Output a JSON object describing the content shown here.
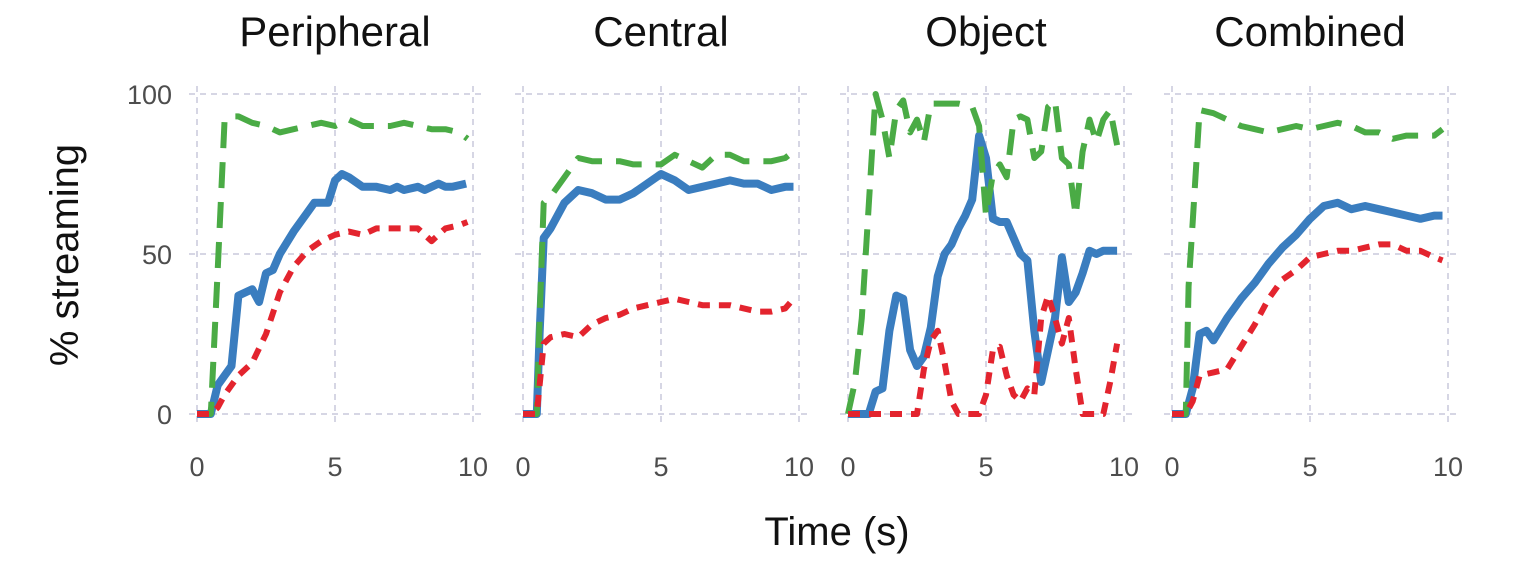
{
  "chart_data": [
    {
      "type": "line",
      "title": "Peripheral",
      "xlim": [
        0,
        10
      ],
      "ylim": [
        0,
        100
      ],
      "xticks": [
        "0",
        "5",
        "10"
      ],
      "yticks": [
        "0",
        "50",
        "100"
      ],
      "series": [
        {
          "style": "solid",
          "color": "#3a7dbf",
          "x": [
            0,
            0.5,
            0.75,
            1.0,
            1.25,
            1.5,
            2.0,
            2.25,
            2.5,
            2.75,
            3.0,
            3.5,
            4.0,
            4.25,
            4.75,
            5.0,
            5.25,
            5.5,
            6.0,
            6.5,
            7.0,
            7.25,
            7.5,
            8.0,
            8.25,
            8.75,
            9.0,
            9.25,
            9.75
          ],
          "y": [
            0,
            0,
            9,
            12,
            15,
            37,
            39,
            35,
            44,
            45,
            50,
            57,
            63,
            66,
            66,
            73,
            75,
            74,
            71,
            71,
            70,
            71,
            70,
            71,
            70,
            72,
            71,
            71,
            72
          ]
        },
        {
          "style": "dashed",
          "color": "#4aab45",
          "x": [
            0,
            0.5,
            0.75,
            1.0,
            1.25,
            1.5,
            2.0,
            2.5,
            3.0,
            3.5,
            4.0,
            4.5,
            5.0,
            5.5,
            6.0,
            6.5,
            7.0,
            7.5,
            8.0,
            8.5,
            9.0,
            9.5,
            9.8
          ],
          "y": [
            0,
            0,
            45,
            92,
            93,
            93,
            91,
            90,
            88,
            89,
            90,
            91,
            90,
            92,
            90,
            90,
            90,
            91,
            90,
            89,
            89,
            88,
            86
          ]
        },
        {
          "style": "dotted",
          "color": "#e3242e",
          "x": [
            0,
            0.5,
            0.75,
            1.0,
            1.5,
            2.0,
            2.5,
            3.0,
            3.5,
            4.0,
            4.5,
            5.0,
            5.5,
            6.0,
            6.5,
            7.0,
            7.5,
            8.0,
            8.5,
            9.0,
            9.5,
            9.8
          ],
          "y": [
            0,
            0,
            2,
            6,
            12,
            16,
            25,
            38,
            46,
            51,
            54,
            56,
            57,
            56,
            58,
            58,
            58,
            58,
            54,
            58,
            59,
            60
          ]
        }
      ]
    },
    {
      "type": "line",
      "title": "Central",
      "xlim": [
        0,
        10
      ],
      "ylim": [
        0,
        100
      ],
      "xticks": [
        "0",
        "5",
        "10"
      ],
      "yticks": [
        "0",
        "50",
        "100"
      ],
      "series": [
        {
          "style": "solid",
          "color": "#3a7dbf",
          "x": [
            0,
            0.5,
            0.6,
            0.75,
            1.0,
            1.5,
            2.0,
            2.5,
            3.0,
            3.5,
            4.0,
            4.5,
            5.0,
            5.5,
            6.0,
            6.5,
            7.0,
            7.5,
            8.0,
            8.5,
            9.0,
            9.5,
            9.8
          ],
          "y": [
            0,
            0,
            25,
            55,
            58,
            66,
            70,
            69,
            67,
            67,
            69,
            72,
            75,
            73,
            70,
            71,
            72,
            73,
            72,
            72,
            70,
            71,
            71
          ]
        },
        {
          "style": "dashed",
          "color": "#4aab45",
          "x": [
            0,
            0.5,
            0.6,
            0.75,
            1.0,
            1.5,
            2.0,
            2.5,
            3.0,
            3.5,
            4.0,
            4.5,
            5.0,
            5.5,
            6.0,
            6.5,
            7.0,
            7.5,
            8.0,
            8.5,
            9.0,
            9.5,
            9.8
          ],
          "y": [
            0,
            0,
            30,
            66,
            68,
            74,
            80,
            79,
            79,
            79,
            78,
            78,
            78,
            81,
            79,
            77,
            81,
            81,
            79,
            79,
            79,
            80,
            82
          ]
        },
        {
          "style": "dotted",
          "color": "#e3242e",
          "x": [
            0,
            0.5,
            0.75,
            1.0,
            1.5,
            2.0,
            2.5,
            3.0,
            3.5,
            4.0,
            4.5,
            5.0,
            5.5,
            6.0,
            6.5,
            7.0,
            7.5,
            8.0,
            8.5,
            9.0,
            9.5,
            9.8
          ],
          "y": [
            0,
            0,
            22,
            24,
            25,
            24,
            28,
            30,
            31,
            33,
            34,
            35,
            36,
            35,
            34,
            34,
            34,
            33,
            32,
            32,
            33,
            36
          ]
        }
      ]
    },
    {
      "type": "line",
      "title": "Object",
      "xlim": [
        0,
        10
      ],
      "ylim": [
        0,
        100
      ],
      "xticks": [
        "0",
        "5",
        "10"
      ],
      "yticks": [
        "0",
        "50",
        "100"
      ],
      "series": [
        {
          "style": "solid",
          "color": "#3a7dbf",
          "x": [
            0,
            0.25,
            0.5,
            0.75,
            1.0,
            1.25,
            1.5,
            1.75,
            2.0,
            2.25,
            2.5,
            2.75,
            3.0,
            3.25,
            3.5,
            3.75,
            4.0,
            4.25,
            4.5,
            4.75,
            5.0,
            5.25,
            5.5,
            5.75,
            6.0,
            6.25,
            6.5,
            6.75,
            7.0,
            7.25,
            7.5,
            7.75,
            8.0,
            8.25,
            8.5,
            8.75,
            9.0,
            9.25,
            9.5,
            9.75
          ],
          "y": [
            0,
            0,
            0,
            0,
            7,
            8,
            26,
            37,
            36,
            20,
            15,
            18,
            27,
            43,
            50,
            53,
            58,
            62,
            67,
            87,
            80,
            61,
            60,
            60,
            55,
            50,
            48,
            26,
            10,
            20,
            30,
            49,
            35,
            38,
            44,
            51,
            50,
            51,
            51,
            51
          ]
        },
        {
          "style": "dashed",
          "color": "#4aab45",
          "x": [
            0,
            0.25,
            0.5,
            0.75,
            1.0,
            1.25,
            1.5,
            1.75,
            2.0,
            2.25,
            2.5,
            2.75,
            3.0,
            3.5,
            4.0,
            4.5,
            4.75,
            5.0,
            5.25,
            5.5,
            5.75,
            6.0,
            6.25,
            6.5,
            6.75,
            7.0,
            7.25,
            7.5,
            7.75,
            8.0,
            8.25,
            8.5,
            8.75,
            9.0,
            9.25,
            9.5,
            9.75
          ],
          "y": [
            0,
            10,
            30,
            65,
            100,
            92,
            80,
            95,
            98,
            88,
            92,
            85,
            97,
            97,
            97,
            96,
            90,
            62,
            75,
            78,
            74,
            92,
            93,
            92,
            80,
            82,
            96,
            98,
            80,
            78,
            62,
            82,
            92,
            85,
            92,
            95,
            84
          ]
        },
        {
          "style": "dotted",
          "color": "#e3242e",
          "x": [
            0,
            0.25,
            0.5,
            0.75,
            1.0,
            1.25,
            1.5,
            1.75,
            2.0,
            2.25,
            2.5,
            2.75,
            3.0,
            3.25,
            3.5,
            3.75,
            4.0,
            4.25,
            4.5,
            4.75,
            5.0,
            5.25,
            5.5,
            5.75,
            6.0,
            6.25,
            6.5,
            6.75,
            7.0,
            7.25,
            7.5,
            7.75,
            8.0,
            8.25,
            8.5,
            8.75,
            9.0,
            9.25,
            9.5,
            9.75
          ],
          "y": [
            0,
            0,
            0,
            0,
            0,
            0,
            0,
            0,
            0,
            0,
            0,
            14,
            23,
            26,
            16,
            4,
            0,
            0,
            0,
            0,
            6,
            20,
            21,
            12,
            6,
            4,
            8,
            6,
            30,
            37,
            30,
            22,
            30,
            14,
            0,
            0,
            0,
            0,
            10,
            22
          ]
        }
      ]
    },
    {
      "type": "line",
      "title": "Combined",
      "xlim": [
        0,
        10
      ],
      "ylim": [
        0,
        100
      ],
      "xticks": [
        "0",
        "5",
        "10"
      ],
      "yticks": [
        "0",
        "50",
        "100"
      ],
      "series": [
        {
          "style": "solid",
          "color": "#3a7dbf",
          "x": [
            0,
            0.5,
            0.75,
            1.0,
            1.25,
            1.5,
            2.0,
            2.5,
            3.0,
            3.5,
            4.0,
            4.5,
            5.0,
            5.5,
            6.0,
            6.5,
            7.0,
            7.5,
            8.0,
            8.5,
            9.0,
            9.5,
            9.8
          ],
          "y": [
            0,
            0,
            8,
            25,
            26,
            23,
            30,
            36,
            41,
            47,
            52,
            56,
            61,
            65,
            66,
            64,
            65,
            64,
            63,
            62,
            61,
            62,
            62
          ]
        },
        {
          "style": "dashed",
          "color": "#4aab45",
          "x": [
            0,
            0.5,
            0.6,
            0.75,
            1.0,
            1.5,
            2.0,
            2.5,
            3.0,
            3.5,
            4.0,
            4.5,
            5.0,
            5.5,
            6.0,
            6.5,
            7.0,
            7.5,
            8.0,
            8.5,
            9.0,
            9.5,
            9.8
          ],
          "y": [
            0,
            0,
            40,
            60,
            95,
            94,
            92,
            90,
            89,
            88,
            89,
            90,
            89,
            90,
            91,
            90,
            88,
            88,
            86,
            87,
            87,
            87,
            89
          ]
        },
        {
          "style": "dotted",
          "color": "#e3242e",
          "x": [
            0,
            0.5,
            0.75,
            1.0,
            1.5,
            2.0,
            2.5,
            3.0,
            3.5,
            4.0,
            4.5,
            5.0,
            5.5,
            6.0,
            6.5,
            7.0,
            7.5,
            8.0,
            8.5,
            9.0,
            9.5,
            9.8
          ],
          "y": [
            0,
            0,
            4,
            12,
            13,
            14,
            21,
            28,
            36,
            42,
            45,
            49,
            50,
            51,
            51,
            52,
            53,
            53,
            51,
            51,
            49,
            48
          ]
        }
      ]
    }
  ],
  "axes": {
    "xlabel": "Time (s)",
    "ylabel": "% streaming"
  }
}
